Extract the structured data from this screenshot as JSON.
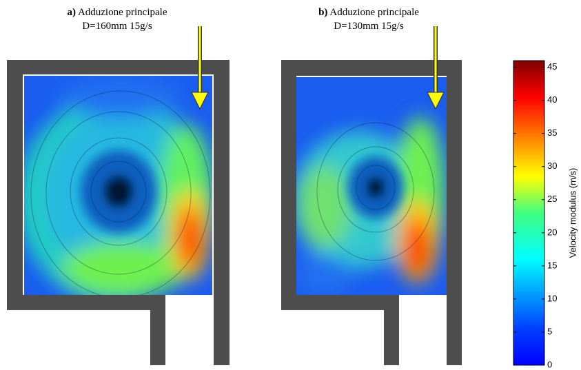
{
  "panels": [
    {
      "letter": "a)",
      "title": "Adduzione principale",
      "subtitle": "D=160mm 15g/s"
    },
    {
      "letter": "b)",
      "title": "Adduzione principale",
      "subtitle": "D=130mm 15g/s"
    }
  ],
  "colorbar": {
    "label": "Velocity modulus (m/s)",
    "colormap": "jet",
    "ylim": [
      0,
      46
    ],
    "yticks": [
      0,
      5,
      10,
      15,
      20,
      25,
      30,
      35,
      40,
      45
    ]
  }
}
